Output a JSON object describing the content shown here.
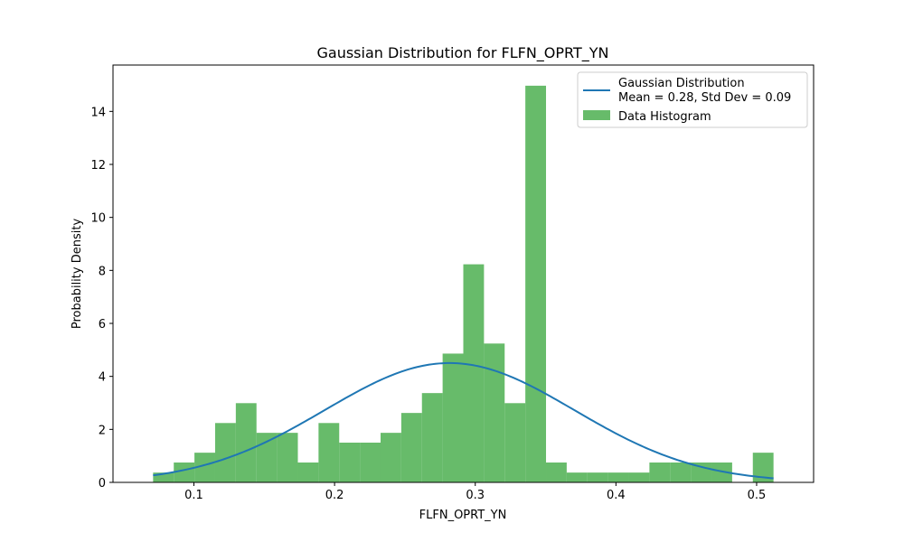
{
  "chart_data": {
    "type": "bar",
    "title": "Gaussian Distribution for FLFN_OPRT_YN",
    "xlabel": "FLFN_OPRT_YN",
    "ylabel": "Probability Density",
    "xlim": [
      0.0425,
      0.5405
    ],
    "ylim": [
      0,
      15.75
    ],
    "xticks": [
      0.1,
      0.2,
      0.3,
      0.4,
      0.5
    ],
    "xtick_labels": [
      "0.1",
      "0.2",
      "0.3",
      "0.4",
      "0.5"
    ],
    "yticks": [
      0,
      2,
      4,
      6,
      8,
      10,
      12,
      14
    ],
    "ytick_labels": [
      "0",
      "2",
      "4",
      "6",
      "8",
      "10",
      "12",
      "14"
    ],
    "grid": false,
    "legend_position": "top-right",
    "histogram": {
      "name": "Data Histogram",
      "color": "#4caf50",
      "bins": [
        {
          "x0": 0.071,
          "x1": 0.0857,
          "value": 0.37
        },
        {
          "x0": 0.0857,
          "x1": 0.1004,
          "value": 0.75
        },
        {
          "x0": 0.1004,
          "x1": 0.1151,
          "value": 1.12
        },
        {
          "x0": 0.1151,
          "x1": 0.1298,
          "value": 2.24
        },
        {
          "x0": 0.1298,
          "x1": 0.1445,
          "value": 2.99
        },
        {
          "x0": 0.1445,
          "x1": 0.1592,
          "value": 1.87
        },
        {
          "x0": 0.1592,
          "x1": 0.1739,
          "value": 1.87
        },
        {
          "x0": 0.1739,
          "x1": 0.1886,
          "value": 0.75
        },
        {
          "x0": 0.1886,
          "x1": 0.2033,
          "value": 2.24
        },
        {
          "x0": 0.2033,
          "x1": 0.218,
          "value": 1.5
        },
        {
          "x0": 0.218,
          "x1": 0.2327,
          "value": 1.5
        },
        {
          "x0": 0.2327,
          "x1": 0.2474,
          "value": 1.87
        },
        {
          "x0": 0.2474,
          "x1": 0.2621,
          "value": 2.62
        },
        {
          "x0": 0.2621,
          "x1": 0.2768,
          "value": 3.37
        },
        {
          "x0": 0.2768,
          "x1": 0.2915,
          "value": 4.86
        },
        {
          "x0": 0.2915,
          "x1": 0.3062,
          "value": 8.23
        },
        {
          "x0": 0.3062,
          "x1": 0.3209,
          "value": 5.24
        },
        {
          "x0": 0.3209,
          "x1": 0.3356,
          "value": 2.99
        },
        {
          "x0": 0.3356,
          "x1": 0.3503,
          "value": 14.97
        },
        {
          "x0": 0.3503,
          "x1": 0.365,
          "value": 0.75
        },
        {
          "x0": 0.365,
          "x1": 0.3797,
          "value": 0.37
        },
        {
          "x0": 0.3797,
          "x1": 0.3944,
          "value": 0.37
        },
        {
          "x0": 0.3944,
          "x1": 0.4091,
          "value": 0.37
        },
        {
          "x0": 0.4091,
          "x1": 0.4238,
          "value": 0.37
        },
        {
          "x0": 0.4238,
          "x1": 0.4385,
          "value": 0.75
        },
        {
          "x0": 0.4385,
          "x1": 0.4532,
          "value": 0.75
        },
        {
          "x0": 0.4532,
          "x1": 0.4679,
          "value": 0.75
        },
        {
          "x0": 0.4679,
          "x1": 0.4826,
          "value": 0.75
        },
        {
          "x0": 0.4826,
          "x1": 0.4973,
          "value": 0.0
        },
        {
          "x0": 0.4973,
          "x1": 0.512,
          "value": 1.12
        }
      ]
    },
    "curve": {
      "name": "Gaussian Distribution",
      "name_line2": "Mean = 0.28, Std Dev = 0.09",
      "color": "#1f77b4",
      "mean": 0.2817,
      "std": 0.0886,
      "x_start": 0.071,
      "x_end": 0.512
    }
  }
}
